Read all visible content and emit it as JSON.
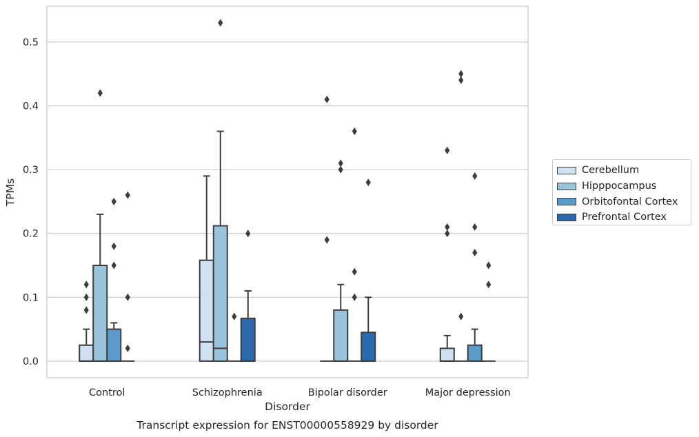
{
  "chart_data": {
    "type": "boxplot",
    "caption": "Transcript expression for ENST00000558929 by disorder",
    "xlabel": "Disorder",
    "ylabel": "TPMs",
    "ylim": [
      -0.026,
      0.556
    ],
    "yticks": [
      0.0,
      0.1,
      0.2,
      0.3,
      0.4,
      0.5
    ],
    "ytick_labels": [
      "0.0",
      "0.1",
      "0.2",
      "0.3",
      "0.4",
      "0.5"
    ],
    "grid": "horizontal",
    "legend_position": "right",
    "categories": [
      "Control",
      "Schizophrenia",
      "Bipolar disorder",
      "Major depression"
    ],
    "series": [
      {
        "name": "Cerebellum",
        "color": "#d0e1f2",
        "boxes": [
          {
            "whisker_low": 0.0,
            "q1": 0.0,
            "median": 0.0,
            "q3": 0.025,
            "whisker_high": 0.05,
            "outliers": [
              0.08,
              0.1,
              0.12
            ]
          },
          {
            "whisker_low": 0.0,
            "q1": 0.0,
            "median": 0.03,
            "q3": 0.158,
            "whisker_high": 0.29,
            "outliers": []
          },
          {
            "whisker_low": 0.0,
            "q1": 0.0,
            "median": 0.0,
            "q3": 0.0,
            "whisker_high": 0.0,
            "outliers": [
              0.19,
              0.41
            ]
          },
          {
            "whisker_low": 0.0,
            "q1": 0.0,
            "median": 0.0,
            "q3": 0.02,
            "whisker_high": 0.04,
            "outliers": [
              0.2,
              0.21,
              0.33
            ]
          }
        ]
      },
      {
        "name": "Hipppocampus",
        "color": "#9ac3dc",
        "boxes": [
          {
            "whisker_low": 0.0,
            "q1": 0.0,
            "median": 0.0,
            "q3": 0.15,
            "whisker_high": 0.23,
            "outliers": [
              0.42
            ]
          },
          {
            "whisker_low": 0.0,
            "q1": 0.0,
            "median": 0.02,
            "q3": 0.212,
            "whisker_high": 0.36,
            "outliers": [
              0.53
            ]
          },
          {
            "whisker_low": 0.0,
            "q1": 0.0,
            "median": 0.0,
            "q3": 0.08,
            "whisker_high": 0.12,
            "outliers": [
              0.3,
              0.31
            ]
          },
          {
            "whisker_low": 0.0,
            "q1": 0.0,
            "median": 0.0,
            "q3": 0.0,
            "whisker_high": 0.0,
            "outliers": [
              0.07,
              0.44,
              0.45
            ]
          }
        ]
      },
      {
        "name": "Orbitofontal Cortex",
        "color": "#5a9bc9",
        "boxes": [
          {
            "whisker_low": 0.0,
            "q1": 0.0,
            "median": 0.0,
            "q3": 0.05,
            "whisker_high": 0.06,
            "outliers": [
              0.15,
              0.18,
              0.25
            ]
          },
          {
            "whisker_low": 0.0,
            "q1": 0.0,
            "median": 0.0,
            "q3": 0.0,
            "whisker_high": 0.0,
            "outliers": [
              0.07
            ]
          },
          {
            "whisker_low": 0.0,
            "q1": 0.0,
            "median": 0.0,
            "q3": 0.0,
            "whisker_high": 0.0,
            "outliers": [
              0.1,
              0.14,
              0.36
            ]
          },
          {
            "whisker_low": 0.0,
            "q1": 0.0,
            "median": 0.0,
            "q3": 0.025,
            "whisker_high": 0.05,
            "outliers": [
              0.17,
              0.21,
              0.29
            ]
          }
        ]
      },
      {
        "name": "Prefrontal Cortex",
        "color": "#2a6aad",
        "boxes": [
          {
            "whisker_low": 0.0,
            "q1": 0.0,
            "median": 0.0,
            "q3": 0.0,
            "whisker_high": 0.0,
            "outliers": [
              0.02,
              0.1,
              0.26
            ]
          },
          {
            "whisker_low": 0.0,
            "q1": 0.0,
            "median": 0.0,
            "q3": 0.067,
            "whisker_high": 0.11,
            "outliers": [
              0.2
            ]
          },
          {
            "whisker_low": 0.0,
            "q1": 0.0,
            "median": 0.0,
            "q3": 0.045,
            "whisker_high": 0.1,
            "outliers": [
              0.28
            ]
          },
          {
            "whisker_low": 0.0,
            "q1": 0.0,
            "median": 0.0,
            "q3": 0.0,
            "whisker_high": 0.0,
            "outliers": [
              0.12,
              0.15
            ]
          }
        ]
      }
    ]
  }
}
